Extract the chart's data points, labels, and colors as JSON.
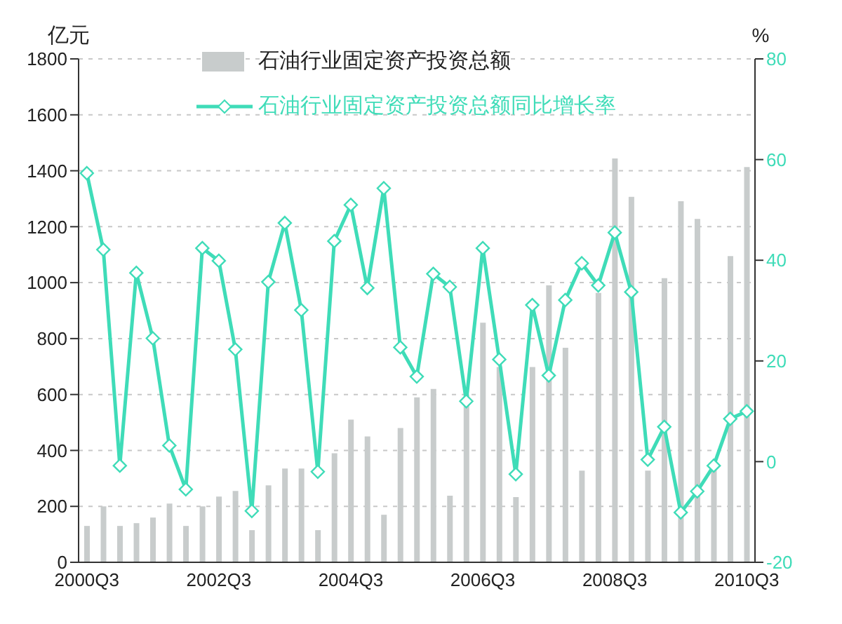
{
  "chart_data": {
    "type": "bar",
    "ylabel": "亿元",
    "y2label": "%",
    "categories": [
      "2000Q3",
      null,
      null,
      null,
      null,
      null,
      null,
      null,
      "2002Q3",
      null,
      null,
      null,
      null,
      null,
      null,
      null,
      "2004Q3",
      null,
      null,
      null,
      null,
      null,
      null,
      null,
      "2006Q3",
      null,
      null,
      null,
      null,
      null,
      null,
      null,
      "2008Q3",
      null,
      null,
      null,
      null,
      null,
      null,
      null,
      "2010Q3"
    ],
    "series": [
      {
        "name": "石油行业固定资产投资总额",
        "color": "#c8cccc",
        "values": [
          130,
          200,
          130,
          140,
          160,
          210,
          130,
          200,
          235,
          255,
          115,
          275,
          335,
          335,
          115,
          390,
          510,
          450,
          170,
          480,
          590,
          620,
          238,
          600,
          857,
          698,
          233,
          698,
          990,
          767,
          328,
          963,
          1444,
          1307,
          328,
          1016,
          1291,
          1228,
          330,
          1095,
          1413
        ]
      },
      {
        "name": "石油行业固定资产投资总额同比增长率",
        "type": "line",
        "axis": "y2",
        "color": "#3fdcb8",
        "marker": "diamond",
        "values": [
          57.3,
          42.1,
          -0.8,
          37.5,
          24.5,
          3.2,
          -5.5,
          42.4,
          39.9,
          22.3,
          -9.8,
          35.7,
          47.4,
          30.1,
          -2.0,
          43.8,
          51.0,
          34.5,
          54.3,
          22.7,
          16.9,
          37.3,
          34.7,
          12.0,
          42.4,
          20.3,
          -2.5,
          31.1,
          17.1,
          32.1,
          39.4,
          35.0,
          45.5,
          33.7,
          0.4,
          6.9,
          -10.1,
          -5.9,
          -0.8,
          8.5,
          10.0
        ]
      }
    ],
    "ylim": [
      0,
      1800
    ],
    "yticks": [
      0,
      200,
      400,
      600,
      800,
      1000,
      1200,
      1400,
      1600,
      1800
    ],
    "y2lim": [
      -20,
      80
    ],
    "y2ticks": [
      -20,
      0,
      20,
      40,
      60,
      80
    ],
    "grid": "y",
    "legend": "top"
  }
}
